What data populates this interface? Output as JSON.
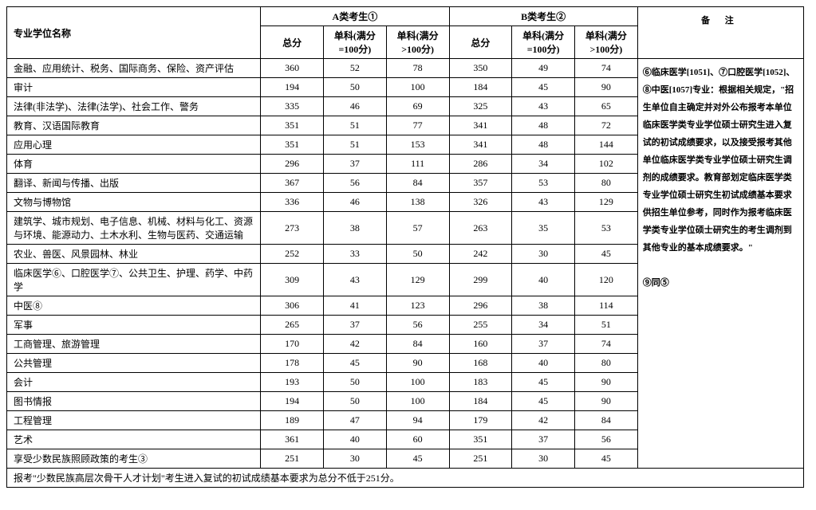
{
  "headers": {
    "major": "专业学位名称",
    "groupA": "A类考生①",
    "groupB": "B类考生②",
    "remark": "备  注",
    "total": "总分",
    "single100": "单科(满分=100分)",
    "singleOver100": "单科(满分>100分)"
  },
  "rows": [
    {
      "major": "金融、应用统计、税务、国际商务、保险、资产评估",
      "a_total": 360,
      "a_s100": 52,
      "a_sover": 78,
      "b_total": 350,
      "b_s100": 49,
      "b_sover": 74
    },
    {
      "major": "审计",
      "a_total": 194,
      "a_s100": 50,
      "a_sover": 100,
      "b_total": 184,
      "b_s100": 45,
      "b_sover": 90
    },
    {
      "major": "法律(非法学)、法律(法学)、社会工作、警务",
      "a_total": 335,
      "a_s100": 46,
      "a_sover": 69,
      "b_total": 325,
      "b_s100": 43,
      "b_sover": 65
    },
    {
      "major": "教育、汉语国际教育",
      "a_total": 351,
      "a_s100": 51,
      "a_sover": 77,
      "b_total": 341,
      "b_s100": 48,
      "b_sover": 72
    },
    {
      "major": "应用心理",
      "a_total": 351,
      "a_s100": 51,
      "a_sover": 153,
      "b_total": 341,
      "b_s100": 48,
      "b_sover": 144
    },
    {
      "major": "体育",
      "a_total": 296,
      "a_s100": 37,
      "a_sover": 111,
      "b_total": 286,
      "b_s100": 34,
      "b_sover": 102
    },
    {
      "major": "翻译、新闻与传播、出版",
      "a_total": 367,
      "a_s100": 56,
      "a_sover": 84,
      "b_total": 357,
      "b_s100": 53,
      "b_sover": 80
    },
    {
      "major": "文物与博物馆",
      "a_total": 336,
      "a_s100": 46,
      "a_sover": 138,
      "b_total": 326,
      "b_s100": 43,
      "b_sover": 129
    },
    {
      "major": "建筑学、城市规划、电子信息、机械、材料与化工、资源与环境、能源动力、土木水利、生物与医药、交通运输",
      "a_total": 273,
      "a_s100": 38,
      "a_sover": 57,
      "b_total": 263,
      "b_s100": 35,
      "b_sover": 53
    },
    {
      "major": "农业、兽医、风景园林、林业",
      "a_total": 252,
      "a_s100": 33,
      "a_sover": 50,
      "b_total": 242,
      "b_s100": 30,
      "b_sover": 45
    },
    {
      "major": "临床医学⑥、口腔医学⑦、公共卫生、护理、药学、中药学",
      "a_total": 309,
      "a_s100": 43,
      "a_sover": 129,
      "b_total": 299,
      "b_s100": 40,
      "b_sover": 120
    },
    {
      "major": "中医⑧",
      "a_total": 306,
      "a_s100": 41,
      "a_sover": 123,
      "b_total": 296,
      "b_s100": 38,
      "b_sover": 114
    },
    {
      "major": "军事",
      "a_total": 265,
      "a_s100": 37,
      "a_sover": 56,
      "b_total": 255,
      "b_s100": 34,
      "b_sover": 51
    },
    {
      "major": "工商管理、旅游管理",
      "a_total": 170,
      "a_s100": 42,
      "a_sover": 84,
      "b_total": 160,
      "b_s100": 37,
      "b_sover": 74
    },
    {
      "major": "公共管理",
      "a_total": 178,
      "a_s100": 45,
      "a_sover": 90,
      "b_total": 168,
      "b_s100": 40,
      "b_sover": 80
    },
    {
      "major": "会计",
      "a_total": 193,
      "a_s100": 50,
      "a_sover": 100,
      "b_total": 183,
      "b_s100": 45,
      "b_sover": 90
    },
    {
      "major": "图书情报",
      "a_total": 194,
      "a_s100": 50,
      "a_sover": 100,
      "b_total": 184,
      "b_s100": 45,
      "b_sover": 90
    },
    {
      "major": "工程管理",
      "a_total": 189,
      "a_s100": 47,
      "a_sover": 94,
      "b_total": 179,
      "b_s100": 42,
      "b_sover": 84
    },
    {
      "major": "艺术",
      "a_total": 361,
      "a_s100": 40,
      "a_sover": 60,
      "b_total": 351,
      "b_s100": 37,
      "b_sover": 56
    },
    {
      "major": "享受少数民族照顾政策的考生③",
      "a_total": 251,
      "a_s100": 30,
      "a_sover": 45,
      "b_total": 251,
      "b_s100": 30,
      "b_sover": 45
    }
  ],
  "remark_text": "⑥临床医学[1051]、⑦口腔医学[1052]、⑧中医[1057]专业：根据相关规定，\"招生单位自主确定并对外公布报考本单位临床医学类专业学位硕士研究生进入复试的初试成绩要求，以及接受报考其他单位临床医学类专业学位硕士研究生调剂的成绩要求。教育部划定临床医学类专业学位硕士研究生初试成绩基本要求供招生单位参考，同时作为报考临床医学类专业学位硕士研究生的考生调剂到其他专业的基本成绩要求。\"\n\n⑨同⑤",
  "footer": "报考\"少数民族高层次骨干人才计划\"考生进入复试的初试成绩基本要求为总分不低于251分。"
}
